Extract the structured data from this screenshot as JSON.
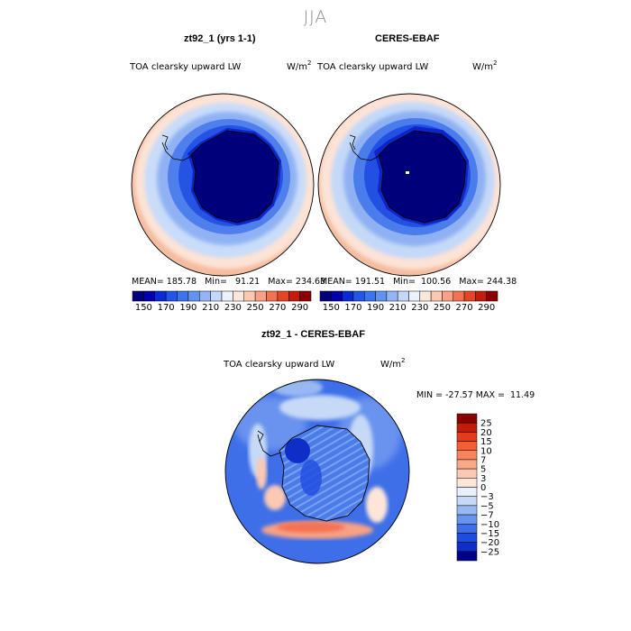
{
  "page": {
    "season": "JJA"
  },
  "panels": {
    "model": {
      "title": "zt92_1 (yrs 1-1)",
      "variable": "TOA clearsky upward LW",
      "units": "W/m",
      "units_exp": "2",
      "mean_label": "MEAN=",
      "mean": "185.78",
      "min_label": "Min=",
      "min": "91.21",
      "max_label": "Max=",
      "max": "234.63"
    },
    "obs": {
      "title": "CERES-EBAF",
      "variable": "TOA clearsky upward LW",
      "units": "W/m",
      "units_exp": "2",
      "mean_label": "MEAN=",
      "mean": "191.51",
      "min_label": "Min=",
      "min": "100.56",
      "max_label": "Max=",
      "max": "244.38"
    },
    "diff": {
      "title": "zt92_1 - CERES-EBAF",
      "variable": "TOA clearsky upward LW",
      "units": "W/m",
      "units_exp": "2",
      "min_label": "MIN =",
      "min": "-27.57",
      "max_label": "MAX =",
      "max": "11.49"
    }
  },
  "chart_data": [
    {
      "type": "heatmap",
      "title": "zt92_1 (yrs 1-1)",
      "subtitle": "TOA clearsky upward LW",
      "projection": "south polar stereographic",
      "units": "W/m^2",
      "stats": {
        "mean": 185.78,
        "min": 91.21,
        "max": 234.63
      },
      "colorbar": {
        "orientation": "horizontal",
        "levels": [
          140,
          150,
          160,
          170,
          180,
          190,
          200,
          210,
          220,
          230,
          240,
          250,
          260,
          270,
          280,
          290
        ],
        "tick_labels": [
          "150",
          "170",
          "190",
          "210",
          "230",
          "250",
          "270",
          "290"
        ],
        "colors": [
          "#00007a",
          "#0000b0",
          "#0a2ad8",
          "#2255e8",
          "#3d73ee",
          "#6393f1",
          "#93b5f5",
          "#c4d8f9",
          "#ebf2fb",
          "#fde7dc",
          "#fbc8b2",
          "#f8a184",
          "#f47254",
          "#e44524",
          "#c21c0c",
          "#8b0000"
        ]
      }
    },
    {
      "type": "heatmap",
      "title": "CERES-EBAF",
      "subtitle": "TOA clearsky upward LW",
      "projection": "south polar stereographic",
      "units": "W/m^2",
      "stats": {
        "mean": 191.51,
        "min": 100.56,
        "max": 244.38
      },
      "colorbar": {
        "orientation": "horizontal",
        "levels": [
          140,
          150,
          160,
          170,
          180,
          190,
          200,
          210,
          220,
          230,
          240,
          250,
          260,
          270,
          280,
          290
        ],
        "tick_labels": [
          "150",
          "170",
          "190",
          "210",
          "230",
          "250",
          "270",
          "290"
        ],
        "colors": [
          "#00007a",
          "#0000b0",
          "#0a2ad8",
          "#2255e8",
          "#3d73ee",
          "#6393f1",
          "#93b5f5",
          "#c4d8f9",
          "#ebf2fb",
          "#fde7dc",
          "#fbc8b2",
          "#f8a184",
          "#f47254",
          "#e44524",
          "#c21c0c",
          "#8b0000"
        ]
      }
    },
    {
      "type": "heatmap",
      "title": "zt92_1 - CERES-EBAF",
      "subtitle": "TOA clearsky upward LW",
      "projection": "south polar stereographic",
      "units": "W/m^2",
      "stats": {
        "min": -27.57,
        "max": 11.49
      },
      "colorbar": {
        "orientation": "vertical",
        "tick_labels": [
          "25",
          "20",
          "15",
          "10",
          "7",
          "5",
          "3",
          "0",
          "−3",
          "−5",
          "−7",
          "−10",
          "−15",
          "−20",
          "−25"
        ],
        "colors": [
          "#8b0000",
          "#c41a0a",
          "#e63a18",
          "#f55e35",
          "#f8845e",
          "#f9a888",
          "#fbc9b3",
          "#fde6d9",
          "#e9f0fb",
          "#c6d9f7",
          "#98b8f3",
          "#6a93ef",
          "#3f6fe8",
          "#1f4ce0",
          "#0f2ec8",
          "#00008b"
        ]
      }
    }
  ]
}
